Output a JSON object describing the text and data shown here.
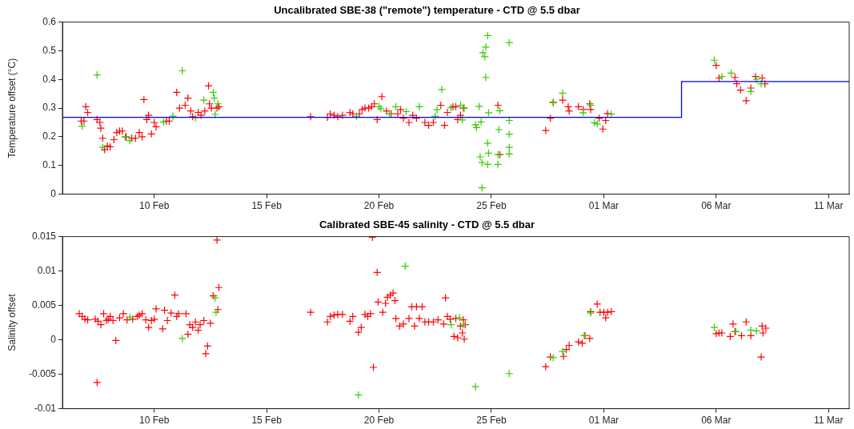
{
  "chart_data": [
    {
      "type": "scatter",
      "title": "Uncalibrated SBE-38 (\"remote\") temperature - CTD @ 5.5 dbar",
      "ylabel": "Temperature offset (°C)",
      "marker": "cross",
      "grid": false,
      "legend": false,
      "xlim": [
        "--02-05T22:00",
        "--03-11T22:00"
      ],
      "xticks": [
        {
          "value": "--02-10",
          "label": "10 Feb"
        },
        {
          "value": "--02-15",
          "label": "15 Feb"
        },
        {
          "value": "--02-20",
          "label": "20 Feb"
        },
        {
          "value": "--02-25",
          "label": "25 Feb"
        },
        {
          "value": "--03-01",
          "label": "01 Mar"
        },
        {
          "value": "--03-06",
          "label": "06 Mar"
        },
        {
          "value": "--03-11",
          "label": "11 Mar"
        }
      ],
      "ylim": [
        0,
        0.6
      ],
      "yticks": [
        0,
        0.1,
        0.2,
        0.3,
        0.4,
        0.5,
        0.6
      ],
      "series": [
        {
          "color": "#ff0000",
          "x": [
            "--02-06T18:00",
            "--02-06T21:00",
            "--02-06T23:00",
            "--02-07T01:00",
            "--02-07T11:00",
            "--02-07T14:00",
            "--02-07T15:00",
            "--02-07T17:00",
            "--02-07T19:00",
            "--02-07T22:00",
            "--02-08T01:00",
            "--02-08T05:00",
            "--02-08T08:00",
            "--02-08T11:00",
            "--02-08T14:00",
            "--02-08T18:00",
            "--02-09T00:00",
            "--02-09T04:00",
            "--02-09T08:00",
            "--02-09T11:00",
            "--02-09T13:00",
            "--02-09T16:00",
            "--02-09T18:00",
            "--02-09T21:00",
            "--02-10T00:00",
            "--02-10T02:00",
            "--02-10T13:00",
            "--02-10T16:00",
            "--02-11T00:00",
            "--02-11T03:00",
            "--02-11T09:00",
            "--02-11T12:00",
            "--02-11T15:00",
            "--02-11T17:00",
            "--02-11T23:00",
            "--02-12T02:00",
            "--02-12T06:00",
            "--02-12T10:00",
            "--02-12T11:00",
            "--02-12T13:00",
            "--02-12T19:00",
            "--02-12T21:00",
            "--02-16T23:00",
            "--02-17T17:00",
            "--02-17T20:00",
            "--02-18T00:00",
            "--02-18T04:00",
            "--02-18T09:00",
            "--02-18T17:00",
            "--02-18T20:00",
            "--02-19T03:00",
            "--02-19T06:00",
            "--02-19T09:00",
            "--02-19T13:00",
            "--02-19T16:00",
            "--02-19T19:00",
            "--02-19T22:00",
            "--02-20T03:00",
            "--02-20T08:00",
            "--02-20T13:00",
            "--02-20T20:00",
            "--02-20T23:00",
            "--02-21T02:00",
            "--02-21T08:00",
            "--02-21T12:00",
            "--02-21T16:00",
            "--02-22T01:00",
            "--02-22T05:00",
            "--02-22T10:00",
            "--02-22T18:00",
            "--02-22T22:00",
            "--02-23T01:00",
            "--02-23T07:00",
            "--02-23T10:00",
            "--02-23T12:00",
            "--02-23T15:00",
            "--02-23T18:00",
            "--02-25T07:00",
            "--02-25T09:00",
            "--02-27T10:00",
            "--02-27T15:00",
            "--02-27T18:00",
            "--02-28T04:00",
            "--02-28T10:00",
            "--02-28T11:00",
            "--02-28T21:00",
            "--02-29T02:00",
            "--02-29T09:00",
            "--02-29T10:00",
            "--02-29T19:00",
            "--02-29T23:00",
            "--03-01T02:00",
            "--03-01T04:00",
            "--03-06T00:00",
            "--03-06T03:00",
            "--03-06T20:00",
            "--03-06T22:00",
            "--03-07T02:00",
            "--03-07T08:00",
            "--03-07T13:00",
            "--03-07T18:00",
            "--03-08T01:00",
            "--03-08T04:00"
          ],
          "values": [
            0.255,
            0.255,
            0.305,
            0.285,
            0.26,
            0.25,
            0.23,
            0.195,
            0.155,
            0.168,
            0.165,
            0.19,
            0.215,
            0.22,
            0.22,
            0.2,
            0.195,
            0.195,
            0.215,
            0.2,
            0.33,
            0.26,
            0.275,
            0.21,
            0.25,
            0.235,
            0.255,
            0.255,
            0.355,
            0.3,
            0.31,
            0.335,
            0.29,
            0.27,
            0.285,
            0.275,
            0.29,
            0.378,
            0.315,
            0.3,
            0.3,
            0.305,
            0.27,
            0.268,
            0.28,
            0.275,
            0.27,
            0.275,
            0.285,
            0.28,
            0.28,
            0.295,
            0.3,
            0.3,
            0.305,
            0.315,
            0.26,
            0.34,
            0.29,
            0.28,
            0.28,
            0.295,
            0.265,
            0.25,
            0.275,
            0.265,
            0.25,
            0.24,
            0.25,
            0.31,
            0.24,
            0.285,
            0.305,
            0.305,
            0.26,
            0.275,
            0.3,
            0.31,
            0.138,
            0.222,
            0.265,
            0.32,
            0.328,
            0.305,
            0.29,
            0.305,
            0.295,
            0.315,
            0.295,
            0.265,
            0.227,
            0.257,
            0.281,
            0.449,
            0.405,
            0.407,
            0.385,
            0.363,
            0.326,
            0.37,
            0.41,
            0.405,
            0.385
          ]
        },
        {
          "color": "#33cc00",
          "x": [
            "--02-06T19:00",
            "--02-07T11:00",
            "--02-07T17:00",
            "--02-08T17:00",
            "--02-08T22:00",
            "--02-10T10:00",
            "--02-10T20:00",
            "--02-11T06:00",
            "--02-11T20:00",
            "--02-12T05:00",
            "--02-12T15:00",
            "--02-12T16:00",
            "--02-12T17:00",
            "--02-12T20:00",
            "--02-19T00:00",
            "--02-20T00:00",
            "--02-20T02:00",
            "--02-20T11:00",
            "--02-20T18:00",
            "--02-21T05:00",
            "--02-21T19:00",
            "--02-22T12:00",
            "--02-22T14:00",
            "--02-22T19:00",
            "--02-23T05:00",
            "--02-23T15:00",
            "--02-23T17:00",
            "--02-23T19:00",
            "--02-24T07:00",
            "--02-24T08:00",
            "--02-24T11:00",
            "--02-24T12:00",
            "--02-24T13:00",
            "--02-24T14:00",
            "--02-24T14:00",
            "--02-24T15:00",
            "--02-24T17:00",
            "--02-24T18:00",
            "--02-24T18:00",
            "--02-24T20:00",
            "--02-24T20:00",
            "--02-24T20:00",
            "--02-24T21:00",
            "--02-24T21:00",
            "--02-25T07:00",
            "--02-25T07:00",
            "--02-25T08:00",
            "--02-25T09:00",
            "--02-25T19:00",
            "--02-25T19:00",
            "--02-25T19:00",
            "--02-25T19:00",
            "--02-25T19:00",
            "--02-27T18:00",
            "--02-28T04:00",
            "--02-29T02:00",
            "--02-29T10:00",
            "--02-29T14:00",
            "--02-29T17:00",
            "--03-01T08:00",
            "--03-05T22:00",
            "--03-06T06:00",
            "--03-06T16:00",
            "--03-07T13:00",
            "--03-07T19:00",
            "--03-08T00:00"
          ],
          "values": [
            0.237,
            0.416,
            0.163,
            0.2,
            0.187,
            0.252,
            0.272,
            0.43,
            0.267,
            0.328,
            0.355,
            0.335,
            0.278,
            0.315,
            0.272,
            0.305,
            0.298,
            0.28,
            0.305,
            0.288,
            0.305,
            0.272,
            0.295,
            0.365,
            0.301,
            0.31,
            0.259,
            0.3,
            0.242,
            0.232,
            0.306,
            0.13,
            0.252,
            0.11,
            0.022,
            0.493,
            0.479,
            0.513,
            0.407,
            0.553,
            0.178,
            0.104,
            0.143,
            0.284,
            0.138,
            0.104,
            0.225,
            0.291,
            0.528,
            0.257,
            0.209,
            0.163,
            0.14,
            0.319,
            0.352,
            0.284,
            0.31,
            0.249,
            0.245,
            0.279,
            0.467,
            0.41,
            0.422,
            0.358,
            0.4,
            0.385
          ]
        },
        {
          "type": "step",
          "marker": "none",
          "color": "#0000ff",
          "x": [
            "--02-05T22:00",
            "--03-04T11:00",
            "--03-11T22:00"
          ],
          "values": [
            0.268,
            0.393,
            0.393
          ]
        }
      ]
    },
    {
      "type": "scatter",
      "title": "Calibrated SBE-45 salinity - CTD @ 5.5 dbar",
      "ylabel": "Salinity offset",
      "marker": "cross",
      "grid": false,
      "legend": false,
      "xlim": [
        "--02-05T22:00",
        "--03-11T22:00"
      ],
      "xticks": [
        {
          "value": "--02-10",
          "label": "10 Feb"
        },
        {
          "value": "--02-15",
          "label": "15 Feb"
        },
        {
          "value": "--02-20",
          "label": "20 Feb"
        },
        {
          "value": "--02-25",
          "label": "25 Feb"
        },
        {
          "value": "--03-01",
          "label": "01 Mar"
        },
        {
          "value": "--03-06",
          "label": "06 Mar"
        },
        {
          "value": "--03-11",
          "label": "11 Mar"
        }
      ],
      "ylim": [
        -0.01,
        0.015
      ],
      "yticks": [
        -0.01,
        -0.005,
        0,
        0.005,
        0.01,
        0.015
      ],
      "series": [
        {
          "color": "#ff0000",
          "x": [
            "--02-06T16:00",
            "--02-06T19:00",
            "--02-06T22:00",
            "--02-07T01:00",
            "--02-07T09:00",
            "--02-07T11:00",
            "--02-07T12:00",
            "--02-07T15:00",
            "--02-07T18:00",
            "--02-07T21:00",
            "--02-07T23:00",
            "--02-08T01:00",
            "--02-08T04:00",
            "--02-08T07:00",
            "--02-08T11:00",
            "--02-08T15:00",
            "--02-08T19:00",
            "--02-09T01:00",
            "--02-09T06:00",
            "--02-09T08:00",
            "--02-09T11:00",
            "--02-09T15:00",
            "--02-09T18:00",
            "--02-09T21:00",
            "--02-10T00:00",
            "--02-10T02:00",
            "--02-10T09:00",
            "--02-10T11:00",
            "--02-10T14:00",
            "--02-10T18:00",
            "--02-10T22:00",
            "--02-11T00:00",
            "--02-11T02:00",
            "--02-11T10:00",
            "--02-11T12:00",
            "--02-11T14:00",
            "--02-11T17:00",
            "--02-11T20:00",
            "--02-11T23:00",
            "--02-12T01:00",
            "--02-12T05:00",
            "--02-12T07:00",
            "--02-12T09:00",
            "--02-12T12:00",
            "--02-12T15:00",
            "--02-12T19:00",
            "--02-12T20:00",
            "--02-12T21:00",
            "--02-16T23:00",
            "--02-17T17:00",
            "--02-17T20:00",
            "--02-18T00:00",
            "--02-18T04:00",
            "--02-18T09:00",
            "--02-18T17:00",
            "--02-18T20:00",
            "--02-19T02:00",
            "--02-19T05:00",
            "--02-19T09:00",
            "--02-19T12:00",
            "--02-19T15:00",
            "--02-19T17:00",
            "--02-19T18:00",
            "--02-19T22:00",
            "--02-19T23:00",
            "--02-20T04:00",
            "--02-20T07:00",
            "--02-20T09:00",
            "--02-20T12:00",
            "--02-20T15:00",
            "--02-20T17:00",
            "--02-20T18:00",
            "--02-20T22:00",
            "--02-21T02:00",
            "--02-21T08:00",
            "--02-21T11:00",
            "--02-21T14:00",
            "--02-21T16:00",
            "--02-21T19:00",
            "--02-21T22:00",
            "--02-22T01:00",
            "--02-22T05:00",
            "--02-22T10:00",
            "--02-22T15:00",
            "--02-22T21:00",
            "--02-22T23:00",
            "--02-23T01:00",
            "--02-23T04:00",
            "--02-23T08:00",
            "--02-23T10:00",
            "--02-23T12:00",
            "--02-23T15:00",
            "--02-23T17:00",
            "--02-23T18:00",
            "--02-23T19:00",
            "--02-23T20:00",
            "--02-27T10:00",
            "--02-27T15:00",
            "--02-28T05:00",
            "--02-28T08:00",
            "--02-28T11:00",
            "--02-28T21:00",
            "--02-29T01:00",
            "--02-29T04:00",
            "--02-29T09:00",
            "--02-29T10:00",
            "--02-29T17:00",
            "--02-29T20:00",
            "--03-01T00:00",
            "--03-01T02:00",
            "--03-01T04:00",
            "--03-01T08:00",
            "--03-06T00:00",
            "--03-06T03:00",
            "--03-06T06:00",
            "--03-06T15:00",
            "--03-06T18:00",
            "--03-06T20:00",
            "--03-07T03:00",
            "--03-07T08:00",
            "--03-07T13:00",
            "--03-08T00:00",
            "--03-08T01:00",
            "--03-08T02:00",
            "--03-08T05:00"
          ],
          "values": [
            0.0038,
            0.0034,
            0.003,
            0.0029,
            0.003,
            -0.0062,
            0.0027,
            0.0022,
            0.0038,
            0.0028,
            0.003,
            0.0034,
            0.0028,
            -0.0001,
            0.0032,
            0.0038,
            0.0029,
            0.003,
            0.0034,
            0.0036,
            0.0038,
            0.0029,
            0.0018,
            0.0028,
            0.003,
            0.0045,
            0.0016,
            0.0043,
            0.0028,
            0.0039,
            0.0065,
            0.0034,
            0.0038,
            0.0038,
            0.0008,
            0.0022,
            0.0018,
            0.0026,
            0.0014,
            0.0022,
            0.0028,
            -0.002,
            -0.0009,
            0.0024,
            0.0064,
            0.0145,
            0.0044,
            0.0076,
            0.004,
            0.0026,
            0.0034,
            0.0036,
            0.0037,
            0.0037,
            0.0027,
            0.0034,
            0.0011,
            0.0018,
            0.0037,
            0.0034,
            0.0038,
            0.0149,
            -0.004,
            0.0098,
            0.0055,
            0.004,
            0.0053,
            0.0062,
            0.0065,
            0.0068,
            0.0057,
            0.0031,
            0.002,
            0.0023,
            0.0031,
            0.0048,
            0.002,
            0.0048,
            0.0031,
            0.0048,
            0.0026,
            0.0026,
            0.0026,
            0.0029,
            0.0023,
            0.0061,
            0.0034,
            0.003,
            0.0005,
            0.0031,
            0.0003,
            0.002,
            0.001,
            0.0029,
            0.0001,
            0.0022,
            -0.0039,
            -0.0025,
            -0.0024,
            -0.0014,
            -0.0008,
            -0.0003,
            -0.0005,
            0.0006,
            0.0002,
            0.0041,
            0.0052,
            0.004,
            0.004,
            0.0032,
            0.004,
            0.0041,
            0.0009,
            0.001,
            0.001,
            0.0005,
            0.0023,
            0.0012,
            0.0006,
            0.0026,
            0.0006,
            -0.0025,
            0.002,
            0.001,
            0.0017
          ]
        },
        {
          "color": "#33cc00",
          "x": [
            "--02-08T22:00",
            "--02-11T06:00",
            "--02-12T17:00",
            "--02-12T18:00",
            "--02-19T02:00",
            "--02-21T04:00",
            "--02-23T05:00",
            "--02-23T14:00",
            "--02-23T18:00",
            "--02-24T07:00",
            "--02-25T19:00",
            "--02-27T18:00",
            "--02-28T04:00",
            "--02-29T03:00",
            "--02-29T10:00",
            "--03-05T22:00",
            "--03-06T21:00",
            "--03-07T13:00",
            "--03-07T19:00"
          ],
          "values": [
            0.0033,
            0.0002,
            0.0061,
            0.004,
            -0.008,
            0.0107,
            0.0022,
            0.0032,
            0.0022,
            -0.0068,
            -0.0049,
            -0.0026,
            -0.0017,
            0.0006,
            0.0039,
            0.0018,
            0.0012,
            0.0014,
            0.0013
          ]
        }
      ]
    }
  ]
}
